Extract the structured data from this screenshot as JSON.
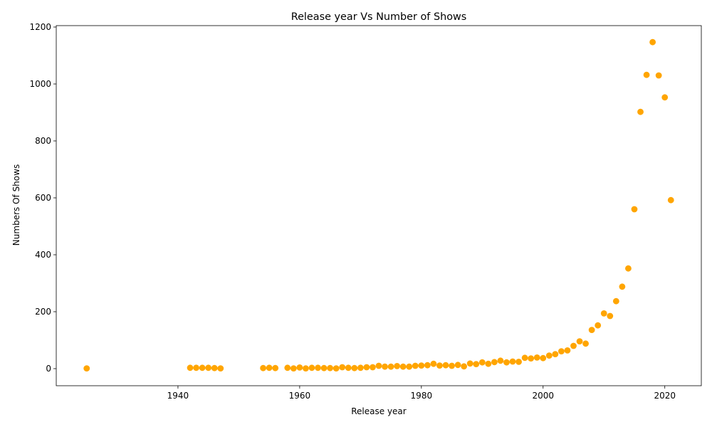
{
  "chart_data": {
    "type": "scatter",
    "title": "Release year Vs Number of Shows",
    "xlabel": "Release year",
    "ylabel": "Numbers Of Shows",
    "xlim": [
      1920,
      2026
    ],
    "ylim": [
      -60,
      1205
    ],
    "xticks": [
      1940,
      1960,
      1980,
      2000,
      2020
    ],
    "yticks": [
      0,
      200,
      400,
      600,
      800,
      1000,
      1200
    ],
    "grid": false,
    "legend": "none",
    "marker_color": "#ffa500",
    "x": [
      1925,
      1942,
      1943,
      1944,
      1945,
      1946,
      1947,
      1954,
      1955,
      1956,
      1958,
      1959,
      1960,
      1961,
      1962,
      1963,
      1964,
      1965,
      1966,
      1967,
      1968,
      1969,
      1970,
      1971,
      1972,
      1973,
      1974,
      1975,
      1976,
      1977,
      1978,
      1979,
      1980,
      1981,
      1982,
      1983,
      1984,
      1985,
      1986,
      1987,
      1988,
      1989,
      1990,
      1991,
      1992,
      1993,
      1994,
      1995,
      1996,
      1997,
      1998,
      1999,
      2000,
      2001,
      2002,
      2003,
      2004,
      2005,
      2006,
      2007,
      2008,
      2009,
      2010,
      2011,
      2012,
      2013,
      2014,
      2015,
      2016,
      2017,
      2018,
      2019,
      2020,
      2021
    ],
    "y": [
      1,
      3,
      3,
      3,
      3,
      2,
      1,
      2,
      3,
      2,
      3,
      1,
      4,
      1,
      3,
      3,
      2,
      2,
      1,
      5,
      3,
      2,
      3,
      5,
      5,
      10,
      7,
      7,
      9,
      7,
      7,
      10,
      11,
      12,
      17,
      11,
      12,
      10,
      13,
      8,
      18,
      16,
      22,
      17,
      23,
      28,
      22,
      25,
      24,
      38,
      36,
      39,
      37,
      46,
      51,
      61,
      64,
      80,
      96,
      88,
      136,
      152,
      194,
      185,
      237,
      288,
      352,
      560,
      902,
      1032,
      1147,
      1030,
      953,
      592
    ]
  }
}
